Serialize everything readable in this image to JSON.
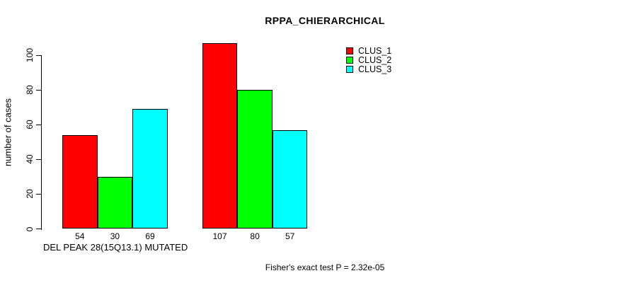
{
  "chart_data": {
    "type": "bar",
    "title": "RPPA_CHIERARCHICAL",
    "ylabel": "number of cases",
    "xlabel": "DEL PEAK 28(15Q13.1) MUTATED",
    "footnote": "Fisher's exact test P = 2.32e-05",
    "y_ticks": [
      0,
      20,
      40,
      60,
      80,
      100
    ],
    "ylim": [
      0,
      107
    ],
    "grid": false,
    "legend_position": "top-right",
    "legend": [
      {
        "label": "CLUS_1",
        "color": "#ff0000"
      },
      {
        "label": "CLUS_2",
        "color": "#00ff00"
      },
      {
        "label": "CLUS_3",
        "color": "#00ffff"
      }
    ],
    "series": [
      {
        "name": "CLUS_1",
        "color": "#ff0000",
        "values": [
          54,
          107
        ]
      },
      {
        "name": "CLUS_2",
        "color": "#00ff00",
        "values": [
          30,
          80
        ]
      },
      {
        "name": "CLUS_3",
        "color": "#00ffff",
        "values": [
          69,
          57
        ]
      }
    ],
    "bar_value_labels": [
      [
        54,
        30,
        69
      ],
      [
        107,
        80,
        57
      ]
    ],
    "colors": {
      "bar_border": "#000000",
      "text": "#000000",
      "background": "#ffffff"
    }
  }
}
